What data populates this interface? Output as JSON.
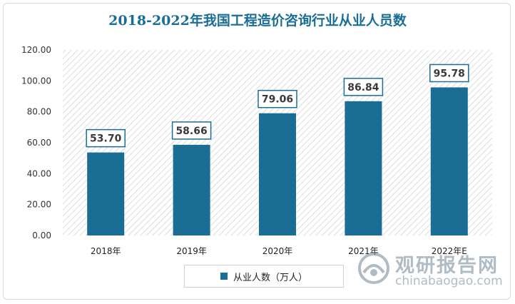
{
  "chart_data": {
    "type": "bar",
    "title": "2018-2022年我国工程造价咨询行业从业人员数",
    "categories": [
      "2018年",
      "2019年",
      "2020年",
      "2021年",
      "2022年E"
    ],
    "series": [
      {
        "name": "从业人数（万人）",
        "values": [
          53.7,
          58.66,
          79.06,
          86.84,
          95.78
        ]
      }
    ],
    "data_labels": [
      "53.70",
      "58.66",
      "79.06",
      "86.84",
      "95.78"
    ],
    "y_ticks": [
      "0.00",
      "20.00",
      "40.00",
      "60.00",
      "80.00",
      "100.00",
      "120.00"
    ],
    "ylim": [
      0,
      120
    ],
    "grid": false,
    "legend_position": "bottom",
    "colors": {
      "bar": "#1a6e96",
      "title": "#1a6e96"
    }
  },
  "watermark": {
    "brand_cn": "观研报告网",
    "brand_en": "chinabaogao.com",
    "icon": "observatory-logo-icon"
  }
}
